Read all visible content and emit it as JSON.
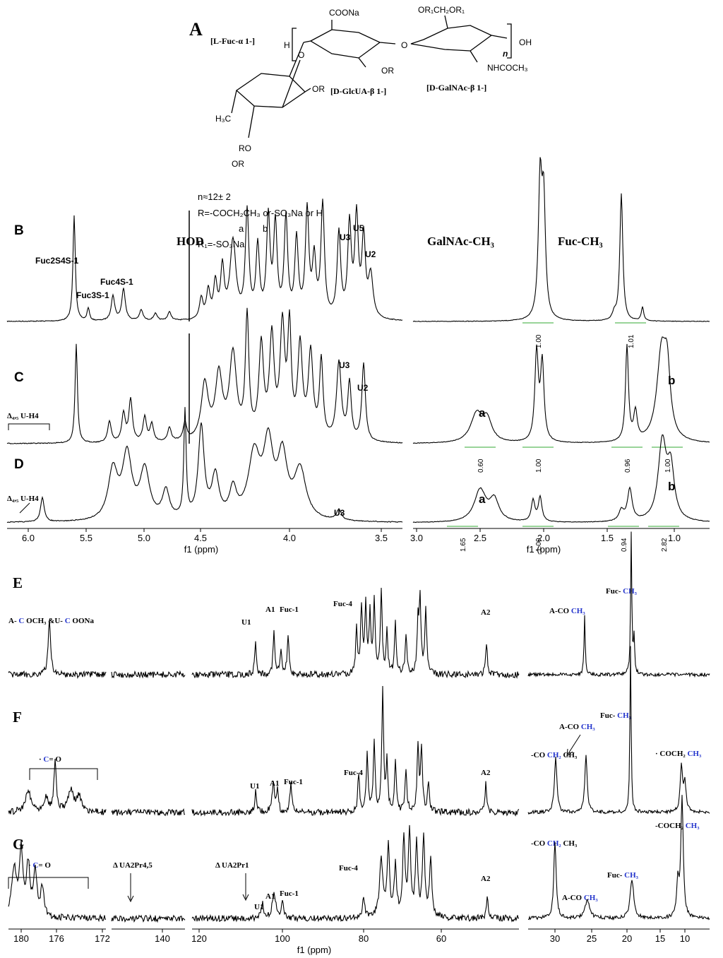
{
  "structure": {
    "label": "A",
    "fucose": "[L-Fuc-α 1-]",
    "glcua": "[D-GlcUA-β 1-]",
    "galnac": "[D-GalNAc-β 1-]",
    "coona": "COONa",
    "or1_top": "OR₁CH₂OR₁",
    "h": "H",
    "oh": "OH",
    "n": "n",
    "nhcoch3": "NHCOCH₃",
    "h3c": "H₃C",
    "or_fuc": "OR",
    "or_glc": "OR",
    "ro": "RO",
    "or_bottom": "OR",
    "o_link": "O",
    "o_link2": "O",
    "n_value": "n≈12± 2",
    "r_def": "R=-COCH₂CH₃ or-SO₃Na or H",
    "r_a": "a",
    "r_b": "b",
    "r1_def": "R₁=-SO₃Na"
  },
  "proton": {
    "panels": [
      {
        "letter": "B",
        "labels": [
          "Fuc2S4S-1",
          "Fuc3S-1",
          "Fuc4S-1",
          "HOD",
          "U3",
          "U5",
          "U2",
          "GalNAc-CH₃",
          "Fuc-CH₃"
        ],
        "integrals": [
          "1.00",
          "1.01"
        ]
      },
      {
        "letter": "C",
        "labels": [
          "Δ₄,₅ U-H4",
          "U3",
          "U2",
          "a",
          "b"
        ],
        "integrals": [
          "0.60",
          "1.00",
          "0.96",
          "1.00"
        ]
      },
      {
        "letter": "D",
        "labels": [
          "Δ₄,₅ U-H4",
          "U3",
          "a",
          "b"
        ],
        "integrals": [
          "1.65",
          "1.00",
          "0.94",
          "2.82"
        ]
      }
    ],
    "axis_left": [
      "6.0",
      "5.5",
      "5.0",
      "4.5",
      "4.0",
      "3.5"
    ],
    "axis_right": [
      "3.0",
      "2.5",
      "2.0",
      "1.5",
      "1.0"
    ],
    "axis_label": "f1 (ppm)"
  },
  "carbon": {
    "panels": [
      {
        "letter": "E",
        "labels": [
          [
            "A- ",
            "C",
            " OCH₃ &U- ",
            "C",
            " OONa"
          ],
          [
            "U1"
          ],
          [
            "A1"
          ],
          [
            "Fuc-1"
          ],
          [
            "Fuc-4"
          ],
          [
            "A2"
          ],
          [
            "A-CO ",
            "CH₃"
          ],
          [
            "Fuc- ",
            "CH₃"
          ]
        ]
      },
      {
        "letter": "F",
        "labels": [
          [
            "· ",
            "C",
            "= O"
          ],
          [
            "U1"
          ],
          [
            "A1"
          ],
          [
            "Fuc-1"
          ],
          [
            "Fuc-4"
          ],
          [
            "A2"
          ],
          [
            "-CO ",
            "CH₂",
            " CH₃"
          ],
          [
            "A-CO ",
            "CH₃"
          ],
          [
            "Fuc- ",
            "CH₃"
          ],
          [
            "· COCH₂ ",
            "CH₃"
          ]
        ]
      },
      {
        "letter": "G",
        "labels": [
          [
            "· ",
            "C",
            "= O"
          ],
          [
            "Δ UA2Pr4,5"
          ],
          [
            "Δ UA2Pr1"
          ],
          [
            "U1"
          ],
          [
            "A1"
          ],
          [
            "Fuc-1"
          ],
          [
            "Fuc-4"
          ],
          [
            "A2"
          ],
          [
            "-CO ",
            "CH₂",
            " CH₃"
          ],
          [
            "-COCH₂ ",
            "CH₃"
          ],
          [
            "Fuc- ",
            "CH₃"
          ],
          [
            "A-CO ",
            "CH₃"
          ]
        ]
      }
    ],
    "ticks": [
      "180",
      "176",
      "172",
      "140",
      "120",
      "100",
      "80",
      "60",
      "30",
      "25",
      "20",
      "15",
      "10"
    ],
    "axis_label": "f1 (ppm)"
  }
}
